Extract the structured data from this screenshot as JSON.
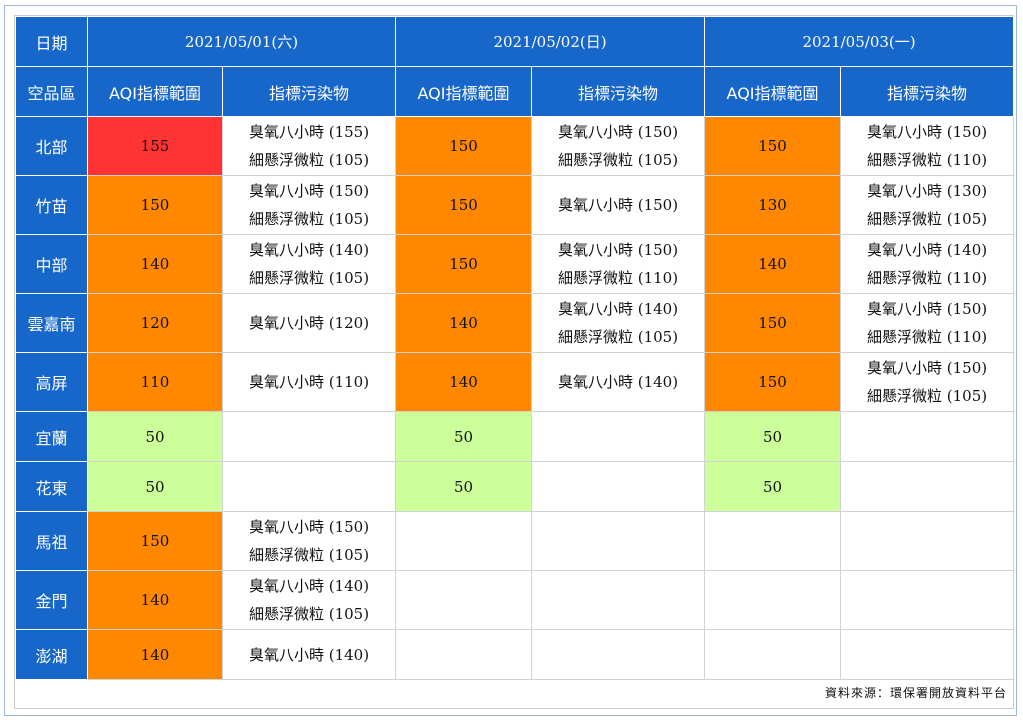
{
  "header": {
    "date_label": "日期",
    "dates": [
      "2021/05/01(六)",
      "2021/05/02(日)",
      "2021/05/03(一)"
    ],
    "region_label": "空品區",
    "aqi_label": "AQI指標範圍",
    "pollutant_label": "指標污染物"
  },
  "colors": {
    "header_blue": "#1766c9",
    "red": "#ff3333",
    "orange": "#ff8800",
    "green": "#ccff99"
  },
  "rows": [
    {
      "region": "北部",
      "days": [
        {
          "aqi": "155",
          "color": "#ff3333",
          "pollutants": [
            "臭氧八小時 (155)",
            "細懸浮微粒 (105)"
          ]
        },
        {
          "aqi": "150",
          "color": "#ff8800",
          "pollutants": [
            "臭氧八小時 (150)",
            "細懸浮微粒 (105)"
          ]
        },
        {
          "aqi": "150",
          "color": "#ff8800",
          "pollutants": [
            "臭氧八小時 (150)",
            "細懸浮微粒 (110)"
          ]
        }
      ]
    },
    {
      "region": "竹苗",
      "days": [
        {
          "aqi": "150",
          "color": "#ff8800",
          "pollutants": [
            "臭氧八小時 (150)",
            "細懸浮微粒 (105)"
          ]
        },
        {
          "aqi": "150",
          "color": "#ff8800",
          "pollutants": [
            "臭氧八小時 (150)"
          ]
        },
        {
          "aqi": "130",
          "color": "#ff8800",
          "pollutants": [
            "臭氧八小時 (130)",
            "細懸浮微粒 (105)"
          ]
        }
      ]
    },
    {
      "region": "中部",
      "days": [
        {
          "aqi": "140",
          "color": "#ff8800",
          "pollutants": [
            "臭氧八小時 (140)",
            "細懸浮微粒 (105)"
          ]
        },
        {
          "aqi": "150",
          "color": "#ff8800",
          "pollutants": [
            "臭氧八小時 (150)",
            "細懸浮微粒 (110)"
          ]
        },
        {
          "aqi": "140",
          "color": "#ff8800",
          "pollutants": [
            "臭氧八小時 (140)",
            "細懸浮微粒 (110)"
          ]
        }
      ]
    },
    {
      "region": "雲嘉南",
      "days": [
        {
          "aqi": "120",
          "color": "#ff8800",
          "pollutants": [
            "臭氧八小時 (120)"
          ]
        },
        {
          "aqi": "140",
          "color": "#ff8800",
          "pollutants": [
            "臭氧八小時 (140)",
            "細懸浮微粒 (105)"
          ]
        },
        {
          "aqi": "150",
          "color": "#ff8800",
          "pollutants": [
            "臭氧八小時 (150)",
            "細懸浮微粒 (110)"
          ]
        }
      ]
    },
    {
      "region": "高屏",
      "days": [
        {
          "aqi": "110",
          "color": "#ff8800",
          "pollutants": [
            "臭氧八小時 (110)"
          ]
        },
        {
          "aqi": "140",
          "color": "#ff8800",
          "pollutants": [
            "臭氧八小時 (140)"
          ]
        },
        {
          "aqi": "150",
          "color": "#ff8800",
          "pollutants": [
            "臭氧八小時 (150)",
            "細懸浮微粒 (105)"
          ]
        }
      ]
    },
    {
      "region": "宜蘭",
      "days": [
        {
          "aqi": "50",
          "color": "#ccff99",
          "pollutants": []
        },
        {
          "aqi": "50",
          "color": "#ccff99",
          "pollutants": []
        },
        {
          "aqi": "50",
          "color": "#ccff99",
          "pollutants": []
        }
      ]
    },
    {
      "region": "花東",
      "days": [
        {
          "aqi": "50",
          "color": "#ccff99",
          "pollutants": []
        },
        {
          "aqi": "50",
          "color": "#ccff99",
          "pollutants": []
        },
        {
          "aqi": "50",
          "color": "#ccff99",
          "pollutants": []
        }
      ]
    },
    {
      "region": "馬祖",
      "days": [
        {
          "aqi": "150",
          "color": "#ff8800",
          "pollutants": [
            "臭氧八小時 (150)",
            "細懸浮微粒 (105)"
          ]
        },
        {
          "aqi": "",
          "color": "",
          "pollutants": []
        },
        {
          "aqi": "",
          "color": "",
          "pollutants": []
        }
      ]
    },
    {
      "region": "金門",
      "days": [
        {
          "aqi": "140",
          "color": "#ff8800",
          "pollutants": [
            "臭氧八小時 (140)",
            "細懸浮微粒 (105)"
          ]
        },
        {
          "aqi": "",
          "color": "",
          "pollutants": []
        },
        {
          "aqi": "",
          "color": "",
          "pollutants": []
        }
      ]
    },
    {
      "region": "澎湖",
      "days": [
        {
          "aqi": "140",
          "color": "#ff8800",
          "pollutants": [
            "臭氧八小時 (140)"
          ]
        },
        {
          "aqi": "",
          "color": "",
          "pollutants": []
        },
        {
          "aqi": "",
          "color": "",
          "pollutants": []
        }
      ]
    }
  ],
  "footer": {
    "source": "資料來源：環保署開放資料平台"
  }
}
